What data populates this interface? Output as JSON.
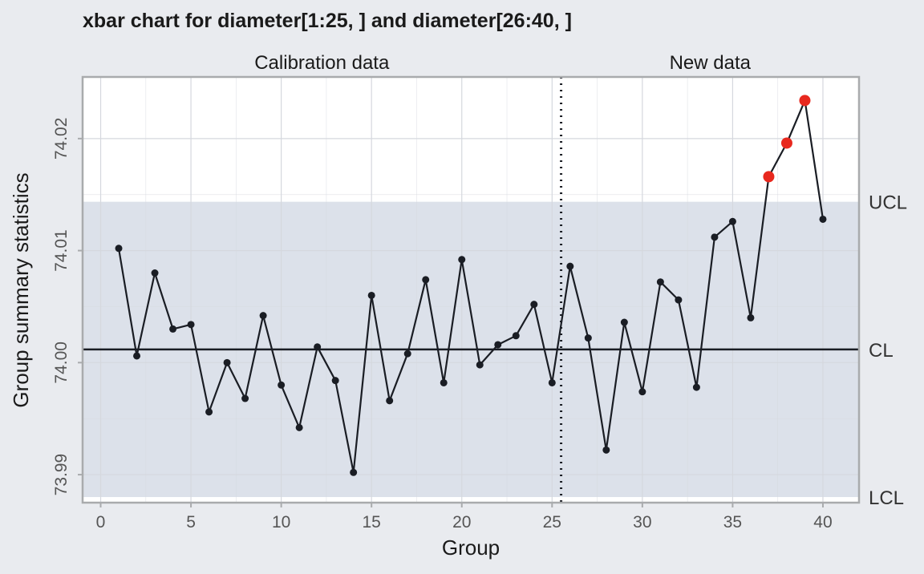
{
  "colors": {
    "page_background": "#e9ebef",
    "plot_background": "#ffffff",
    "control_band": "#dce1ea",
    "grid": "#d5d8de",
    "frame": "#a9abad",
    "line": "#1a1d24",
    "point": "#1a1d24",
    "violation": "#e8281e",
    "text": "#1a1a1a",
    "tick_text": "#555555"
  },
  "chart_data": {
    "type": "line",
    "title": "xbar chart for diameter[1:25, ] and diameter[26:40, ]",
    "xlabel": "Group",
    "ylabel": "Group summary statistics",
    "xlim": [
      -1,
      42
    ],
    "ylim": [
      73.9875,
      74.0255
    ],
    "xticks": [
      0,
      5,
      10,
      15,
      20,
      25,
      30,
      35,
      40
    ],
    "yticks": [
      73.99,
      74.0,
      74.01,
      74.02
    ],
    "ytick_labels": [
      "73.99",
      "74.00",
      "74.01",
      "74.02"
    ],
    "grid": true,
    "sections": [
      {
        "label": "Calibration data",
        "from": 1,
        "to": 25
      },
      {
        "label": "New data",
        "from": 26,
        "to": 40
      }
    ],
    "divider_x": 25.5,
    "limits": {
      "UCL": 74.01436,
      "CL": 74.00118,
      "LCL": 73.988
    },
    "limit_labels": {
      "ucl": "UCL",
      "cl": "CL",
      "lcl": "LCL"
    },
    "series": [
      {
        "x": [
          1,
          2,
          3,
          4,
          5,
          6,
          7,
          8,
          9,
          10,
          11,
          12,
          13,
          14,
          15,
          16,
          17,
          18,
          19,
          20,
          21,
          22,
          23,
          24,
          25,
          26,
          27,
          28,
          29,
          30,
          31,
          32,
          33,
          34,
          35,
          36,
          37,
          38,
          39,
          40
        ],
        "values": [
          74.0102,
          74.0006,
          74.008,
          74.003,
          74.0034,
          73.9956,
          74.0,
          73.9968,
          74.0042,
          73.998,
          73.9942,
          74.0014,
          73.9984,
          73.9902,
          74.006,
          73.9966,
          74.0008,
          74.0074,
          73.9982,
          74.0092,
          73.9998,
          74.0016,
          74.0024,
          74.0052,
          73.9982,
          74.0086,
          74.0022,
          73.9922,
          74.0036,
          73.9974,
          74.0072,
          74.0056,
          73.9978,
          74.0112,
          74.0126,
          74.004,
          74.0166,
          74.0196,
          74.0234,
          74.0128
        ],
        "violations": [
          37,
          38,
          39
        ]
      }
    ]
  }
}
